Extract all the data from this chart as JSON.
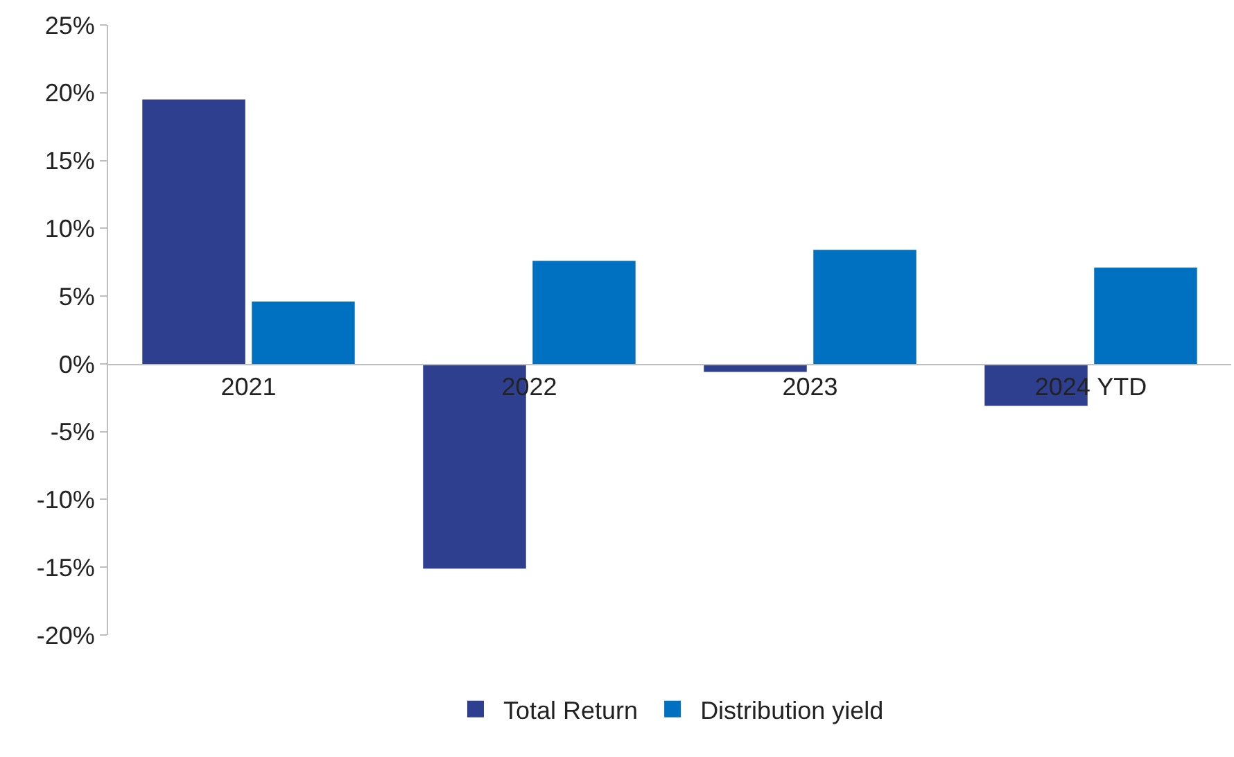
{
  "chart_data": {
    "type": "bar",
    "categories": [
      "2021",
      "2022",
      "2023",
      "2024 YTD"
    ],
    "series": [
      {
        "name": "Total Return",
        "color": "#2e3f8f",
        "values": [
          19.5,
          -15.1,
          -0.6,
          -3.1
        ]
      },
      {
        "name": "Distribution yield",
        "color": "#0070c0",
        "values": [
          4.6,
          7.6,
          8.4,
          7.1
        ]
      }
    ],
    "ylim": [
      -20,
      25
    ],
    "yticks": [
      {
        "value": -20,
        "label": "-20%"
      },
      {
        "value": -15,
        "label": "-15%"
      },
      {
        "value": -10,
        "label": "-10%"
      },
      {
        "value": -5,
        "label": "-5%"
      },
      {
        "value": 0,
        "label": "0%"
      },
      {
        "value": 5,
        "label": "5%"
      },
      {
        "value": 10,
        "label": "10%"
      },
      {
        "value": 15,
        "label": "15%"
      },
      {
        "value": 20,
        "label": "20%"
      },
      {
        "value": 25,
        "label": "25%"
      }
    ],
    "grid": false,
    "legend": "bottom"
  }
}
